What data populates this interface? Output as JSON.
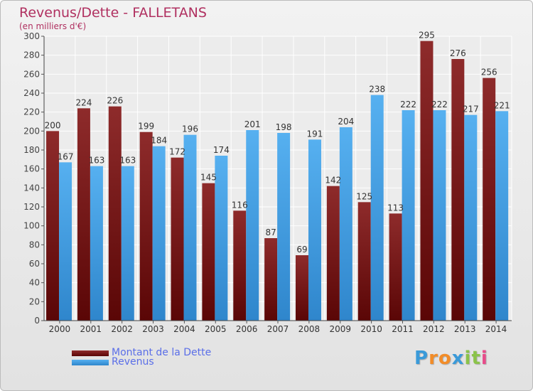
{
  "title": "Revenus/Dette - FALLETANS",
  "subtitle": "(en milliers d'€)",
  "brand": {
    "letters": [
      "P",
      "r",
      "o",
      "x",
      "i",
      "t",
      "i"
    ],
    "colors": [
      "#3a9ad9",
      "#f28c28",
      "#f28c28",
      "#3a9ad9",
      "#8bc34a",
      "#8bc34a",
      "#e84c8a"
    ]
  },
  "colors": {
    "dette": "#7a1a1a",
    "revenus": "#4aa3e8",
    "title": "#b03060"
  },
  "chart_data": {
    "type": "bar",
    "categories": [
      "2000",
      "2001",
      "2002",
      "2003",
      "2004",
      "2005",
      "2006",
      "2007",
      "2008",
      "2009",
      "2010",
      "2011",
      "2012",
      "2013",
      "2014"
    ],
    "series": [
      {
        "name": "Montant de la Dette",
        "values": [
          200,
          224,
          226,
          199,
          172,
          145,
          116,
          87,
          69,
          142,
          125,
          113,
          295,
          276,
          256
        ]
      },
      {
        "name": "Revenus",
        "values": [
          167,
          163,
          163,
          184,
          196,
          174,
          201,
          198,
          191,
          204,
          238,
          222,
          222,
          217,
          221
        ]
      }
    ],
    "ylim": [
      0,
      300
    ],
    "yticks": [
      0,
      20,
      40,
      60,
      80,
      100,
      120,
      140,
      160,
      180,
      200,
      220,
      240,
      260,
      280,
      300
    ],
    "grid": true,
    "legend_position": "bottom-left"
  }
}
